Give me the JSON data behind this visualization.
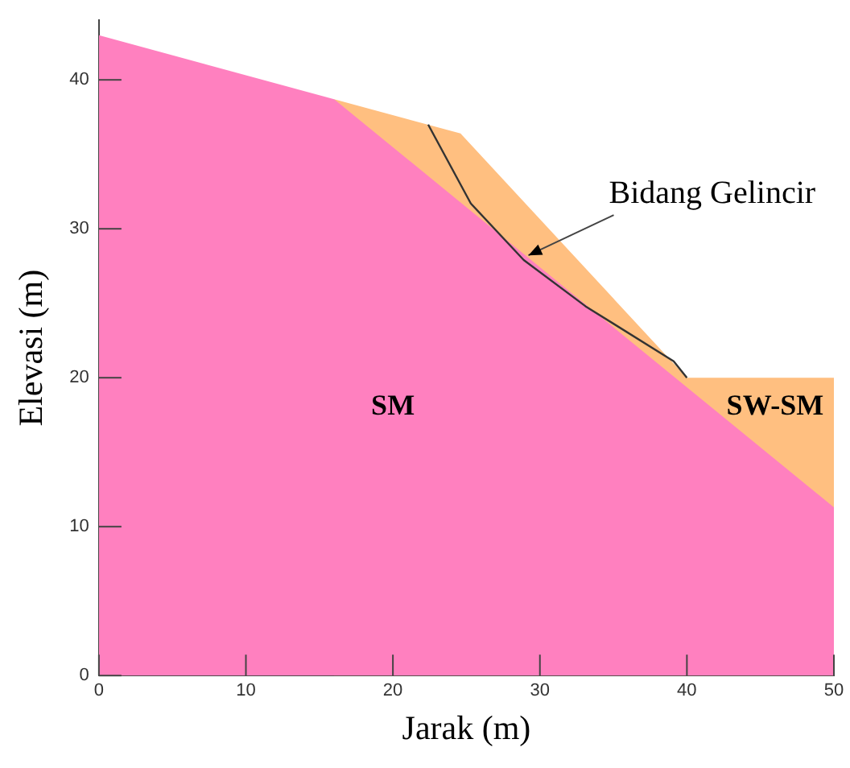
{
  "chart_data": {
    "type": "area",
    "xlabel": "Jarak (m)",
    "ylabel": "Elevasi (m)",
    "xlim": [
      0,
      50
    ],
    "xticks": [
      0,
      10,
      20,
      30,
      40,
      50
    ],
    "ylim": [
      0,
      44
    ],
    "yticks": [
      0,
      10,
      20,
      30,
      40
    ],
    "grid": false,
    "legend": false,
    "marker": "none",
    "series": [
      {
        "name": "SW-SM",
        "color": "#ffbf80",
        "x": [
          16,
          24.6,
          40,
          50
        ],
        "values": [
          38.7,
          36.4,
          20,
          20
        ]
      },
      {
        "name": "SM",
        "color": "#ff80bf",
        "x": [
          0,
          16,
          50
        ],
        "values": [
          43,
          38.7,
          11.3
        ]
      },
      {
        "type": "line",
        "color": "#333333",
        "line_style": "solid",
        "x": [
          22.4,
          25.3,
          28.9,
          33.1,
          39.1,
          40
        ],
        "values": [
          37,
          31.7,
          27.9,
          24.8,
          21.1,
          20
        ]
      }
    ],
    "annotations": [
      {
        "text": "Bidang Gelincir",
        "x": 29,
        "y": 28
      }
    ]
  }
}
